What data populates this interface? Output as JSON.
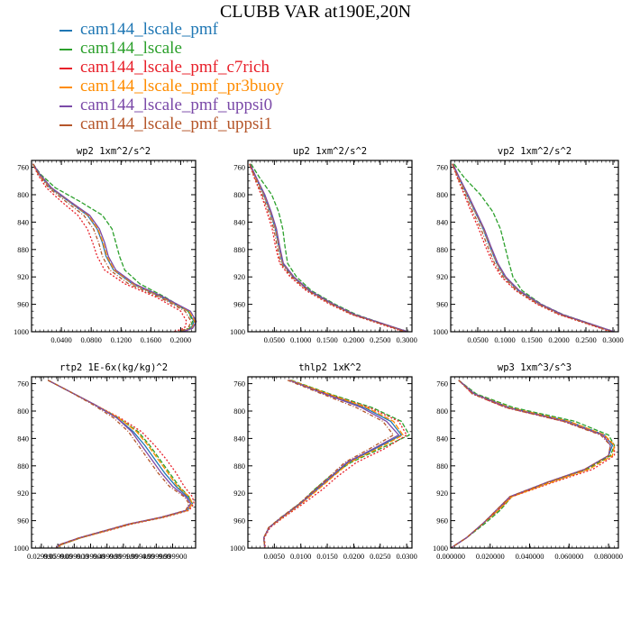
{
  "title": "CLUBB VAR at190E,20N",
  "legend": [
    {
      "label": "cam144_lscale_pmf",
      "color": "#1f77b4"
    },
    {
      "label": "cam144_lscale",
      "color": "#2ca02c"
    },
    {
      "label": "cam144_lscale_pmf_c7rich",
      "color": "#e8202a"
    },
    {
      "label": "cam144_lscale_pmf_pr3buoy",
      "color": "#ff8c00"
    },
    {
      "label": "cam144_lscale_pmf_uppsi0",
      "color": "#7b4aa8"
    },
    {
      "label": "cam144_lscale_pmf_uppsi1",
      "color": "#b5562a"
    }
  ],
  "chart_data": [
    {
      "type": "line",
      "title": "wp2  1xm^2/s^2",
      "xlim": [
        0.0,
        0.22
      ],
      "ylim": [
        1000,
        750
      ],
      "x_ticks": [
        "0.0400",
        "0.0800",
        "0.1200",
        "0.1600",
        "0.2000"
      ],
      "y_ticks": [
        "760",
        "800",
        "840",
        "880",
        "920",
        "960",
        "1000"
      ],
      "y": [
        755,
        770,
        790,
        810,
        830,
        850,
        870,
        890,
        910,
        930,
        950,
        970,
        985,
        995,
        1000
      ],
      "series": [
        {
          "values": [
            0.002,
            0.01,
            0.025,
            0.05,
            0.075,
            0.088,
            0.095,
            0.1,
            0.11,
            0.135,
            0.175,
            0.21,
            0.218,
            0.214,
            0.2
          ]
        },
        {
          "values": [
            0.002,
            0.012,
            0.032,
            0.065,
            0.095,
            0.108,
            0.113,
            0.118,
            0.125,
            0.145,
            0.18,
            0.21,
            0.216,
            0.212,
            0.198
          ]
        },
        {
          "values": [
            0.002,
            0.008,
            0.02,
            0.04,
            0.062,
            0.075,
            0.082,
            0.088,
            0.098,
            0.125,
            0.168,
            0.2,
            0.208,
            0.205,
            0.19
          ]
        },
        {
          "values": [
            0.002,
            0.01,
            0.026,
            0.051,
            0.076,
            0.089,
            0.096,
            0.101,
            0.111,
            0.136,
            0.176,
            0.211,
            0.219,
            0.215,
            0.201
          ]
        },
        {
          "values": [
            0.002,
            0.011,
            0.027,
            0.052,
            0.078,
            0.091,
            0.098,
            0.103,
            0.113,
            0.138,
            0.178,
            0.213,
            0.221,
            0.216,
            0.202
          ]
        },
        {
          "values": [
            0.002,
            0.009,
            0.023,
            0.046,
            0.07,
            0.083,
            0.09,
            0.095,
            0.105,
            0.13,
            0.172,
            0.206,
            0.214,
            0.21,
            0.196
          ]
        }
      ]
    },
    {
      "type": "line",
      "title": "up2  1xm^2/s^2",
      "xlim": [
        0.0,
        0.31
      ],
      "ylim": [
        1000,
        750
      ],
      "x_ticks": [
        "0.0500",
        "0.1000",
        "0.1500",
        "0.2000",
        "0.2500",
        "0.3000"
      ],
      "y_ticks": [
        "760",
        "800",
        "840",
        "880",
        "920",
        "960",
        "1000"
      ],
      "y": [
        755,
        775,
        800,
        825,
        850,
        875,
        900,
        920,
        940,
        960,
        975,
        990,
        1000
      ],
      "series": [
        {
          "values": [
            0.004,
            0.015,
            0.03,
            0.042,
            0.052,
            0.058,
            0.065,
            0.085,
            0.115,
            0.16,
            0.2,
            0.26,
            0.3
          ]
        },
        {
          "values": [
            0.006,
            0.022,
            0.045,
            0.058,
            0.066,
            0.07,
            0.075,
            0.092,
            0.12,
            0.165,
            0.205,
            0.262,
            0.302
          ]
        },
        {
          "values": [
            0.003,
            0.012,
            0.025,
            0.036,
            0.046,
            0.052,
            0.06,
            0.08,
            0.11,
            0.155,
            0.196,
            0.255,
            0.295
          ]
        },
        {
          "values": [
            0.004,
            0.015,
            0.031,
            0.043,
            0.053,
            0.059,
            0.066,
            0.086,
            0.116,
            0.161,
            0.201,
            0.261,
            0.301
          ]
        },
        {
          "values": [
            0.004,
            0.016,
            0.032,
            0.044,
            0.054,
            0.06,
            0.067,
            0.087,
            0.117,
            0.162,
            0.202,
            0.262,
            0.302
          ]
        },
        {
          "values": [
            0.003,
            0.013,
            0.027,
            0.039,
            0.049,
            0.055,
            0.062,
            0.083,
            0.113,
            0.158,
            0.198,
            0.258,
            0.298
          ]
        }
      ]
    },
    {
      "type": "line",
      "title": "vp2  1xm^2/s^2",
      "xlim": [
        0.0,
        0.31
      ],
      "ylim": [
        1000,
        750
      ],
      "x_ticks": [
        "0.0500",
        "0.1000",
        "0.1500",
        "0.2000",
        "0.2500",
        "0.3000"
      ],
      "y_ticks": [
        "760",
        "800",
        "840",
        "880",
        "920",
        "960",
        "1000"
      ],
      "y": [
        755,
        775,
        800,
        825,
        850,
        875,
        900,
        920,
        940,
        960,
        975,
        990,
        1000
      ],
      "series": [
        {
          "values": [
            0.004,
            0.015,
            0.03,
            0.045,
            0.06,
            0.072,
            0.085,
            0.1,
            0.125,
            0.165,
            0.205,
            0.262,
            0.3
          ]
        },
        {
          "values": [
            0.006,
            0.025,
            0.055,
            0.078,
            0.092,
            0.1,
            0.108,
            0.115,
            0.132,
            0.168,
            0.208,
            0.264,
            0.302
          ]
        },
        {
          "values": [
            0.003,
            0.012,
            0.025,
            0.038,
            0.052,
            0.064,
            0.078,
            0.094,
            0.12,
            0.16,
            0.2,
            0.258,
            0.296
          ]
        },
        {
          "values": [
            0.004,
            0.015,
            0.031,
            0.046,
            0.061,
            0.073,
            0.086,
            0.101,
            0.126,
            0.166,
            0.206,
            0.263,
            0.301
          ]
        },
        {
          "values": [
            0.004,
            0.016,
            0.032,
            0.047,
            0.062,
            0.074,
            0.087,
            0.102,
            0.127,
            0.167,
            0.207,
            0.264,
            0.302
          ]
        },
        {
          "values": [
            0.003,
            0.013,
            0.027,
            0.041,
            0.056,
            0.068,
            0.081,
            0.097,
            0.122,
            0.162,
            0.202,
            0.26,
            0.298
          ]
        }
      ]
    },
    {
      "type": "line",
      "title": "rtp2  1E-6x(kg/kg)^2",
      "xlim": [
        0.0,
        10.0
      ],
      "ylim": [
        1000,
        750
      ],
      "x_ticks": [
        "0.029990",
        "0.059900",
        "0.099900",
        "0.199900",
        "0.499900",
        "0.999900",
        "1.999900",
        "4.999900",
        "9.999900"
      ],
      "x_tick_positions": [
        0.6,
        1.6,
        2.6,
        3.6,
        4.6,
        5.6,
        6.6,
        7.6,
        8.6
      ],
      "y": [
        755,
        770,
        790,
        810,
        830,
        850,
        870,
        890,
        910,
        925,
        935,
        945,
        955,
        965,
        975,
        985,
        995,
        1000
      ],
      "y_ticks": [
        "760",
        "800",
        "840",
        "880",
        "920",
        "960",
        "1000"
      ],
      "series": [
        {
          "values": [
            1.0,
            2.2,
            3.8,
            5.2,
            6.2,
            6.9,
            7.5,
            8.1,
            8.8,
            9.5,
            9.8,
            9.5,
            8.0,
            6.0,
            4.5,
            3.0,
            1.8,
            1.5
          ]
        },
        {
          "values": [
            1.0,
            2.2,
            3.8,
            5.3,
            6.5,
            7.2,
            7.8,
            8.4,
            9.0,
            9.6,
            9.8,
            9.5,
            8.0,
            6.0,
            4.5,
            3.0,
            1.8,
            1.5
          ]
        },
        {
          "values": [
            1.0,
            2.2,
            3.8,
            5.4,
            6.7,
            7.5,
            8.2,
            8.8,
            9.3,
            9.8,
            9.9,
            9.6,
            8.1,
            6.1,
            4.6,
            3.0,
            1.8,
            1.5
          ]
        },
        {
          "values": [
            1.0,
            2.2,
            3.8,
            5.3,
            6.4,
            7.1,
            7.7,
            8.3,
            8.9,
            9.6,
            9.8,
            9.5,
            8.0,
            6.0,
            4.5,
            3.0,
            1.8,
            1.5
          ]
        },
        {
          "values": [
            1.0,
            2.2,
            3.8,
            5.2,
            6.1,
            6.7,
            7.3,
            7.9,
            8.6,
            9.4,
            9.7,
            9.4,
            7.9,
            5.9,
            4.4,
            2.9,
            1.7,
            1.5
          ]
        },
        {
          "values": [
            1.0,
            2.2,
            3.7,
            5.0,
            5.9,
            6.5,
            7.1,
            7.7,
            8.4,
            9.3,
            9.6,
            9.4,
            7.9,
            5.9,
            4.4,
            2.9,
            1.7,
            1.5
          ]
        }
      ]
    },
    {
      "type": "line",
      "title": "thlp2  1xK^2",
      "xlim": [
        0.0,
        0.031
      ],
      "ylim": [
        1000,
        750
      ],
      "x_ticks": [
        "0.0050",
        "0.0100",
        "0.0150",
        "0.0200",
        "0.0250",
        "0.0300"
      ],
      "y_ticks": [
        "760",
        "800",
        "840",
        "880",
        "920",
        "960",
        "1000"
      ],
      "y": [
        755,
        775,
        795,
        815,
        835,
        855,
        875,
        895,
        915,
        935,
        955,
        970,
        985,
        1000
      ],
      "series": [
        {
          "values": [
            0.008,
            0.015,
            0.022,
            0.027,
            0.029,
            0.024,
            0.019,
            0.016,
            0.013,
            0.01,
            0.0065,
            0.004,
            0.003,
            0.0032
          ]
        },
        {
          "values": [
            0.0082,
            0.0155,
            0.0235,
            0.029,
            0.0305,
            0.025,
            0.0195,
            0.0155,
            0.0125,
            0.0098,
            0.0063,
            0.004,
            0.003,
            0.0032
          ]
        },
        {
          "values": [
            0.0078,
            0.015,
            0.023,
            0.0285,
            0.03,
            0.0258,
            0.0205,
            0.017,
            0.014,
            0.0105,
            0.0068,
            0.0042,
            0.0031,
            0.0033
          ]
        },
        {
          "values": [
            0.008,
            0.0152,
            0.0225,
            0.0275,
            0.0293,
            0.0245,
            0.0192,
            0.0162,
            0.0132,
            0.0101,
            0.0066,
            0.004,
            0.003,
            0.0032
          ]
        },
        {
          "values": [
            0.0078,
            0.0145,
            0.0215,
            0.0262,
            0.0285,
            0.0237,
            0.0187,
            0.0158,
            0.0128,
            0.0099,
            0.0064,
            0.004,
            0.003,
            0.0032
          ]
        },
        {
          "values": [
            0.0075,
            0.014,
            0.0205,
            0.0255,
            0.0275,
            0.023,
            0.0183,
            0.0155,
            0.0126,
            0.0097,
            0.0063,
            0.0039,
            0.003,
            0.0032
          ]
        }
      ]
    },
    {
      "type": "line",
      "title": "wp3  1xm^3/s^3",
      "xlim": [
        0.0,
        0.085
      ],
      "ylim": [
        1000,
        750
      ],
      "x_ticks": [
        "0.000000",
        "0.020000",
        "0.040000",
        "0.060000",
        "0.080000"
      ],
      "y_ticks": [
        "760",
        "800",
        "840",
        "880",
        "920",
        "960",
        "1000"
      ],
      "y": [
        755,
        775,
        795,
        815,
        835,
        850,
        865,
        885,
        905,
        925,
        945,
        965,
        985,
        1000
      ],
      "series": [
        {
          "values": [
            0.004,
            0.012,
            0.03,
            0.06,
            0.078,
            0.082,
            0.08,
            0.068,
            0.048,
            0.03,
            0.024,
            0.016,
            0.008,
            0.0
          ]
        },
        {
          "values": [
            0.004,
            0.013,
            0.032,
            0.063,
            0.08,
            0.083,
            0.081,
            0.069,
            0.049,
            0.031,
            0.025,
            0.017,
            0.008,
            0.0
          ]
        },
        {
          "values": [
            0.004,
            0.011,
            0.028,
            0.057,
            0.077,
            0.083,
            0.083,
            0.072,
            0.051,
            0.031,
            0.024,
            0.016,
            0.008,
            0.0
          ]
        },
        {
          "values": [
            0.004,
            0.012,
            0.03,
            0.06,
            0.078,
            0.083,
            0.082,
            0.07,
            0.05,
            0.031,
            0.024,
            0.016,
            0.008,
            0.0
          ]
        },
        {
          "values": [
            0.004,
            0.012,
            0.029,
            0.058,
            0.077,
            0.081,
            0.08,
            0.068,
            0.048,
            0.03,
            0.023,
            0.016,
            0.008,
            0.0
          ]
        },
        {
          "values": [
            0.004,
            0.011,
            0.028,
            0.057,
            0.076,
            0.081,
            0.08,
            0.068,
            0.048,
            0.03,
            0.023,
            0.016,
            0.008,
            0.0
          ]
        }
      ]
    }
  ]
}
